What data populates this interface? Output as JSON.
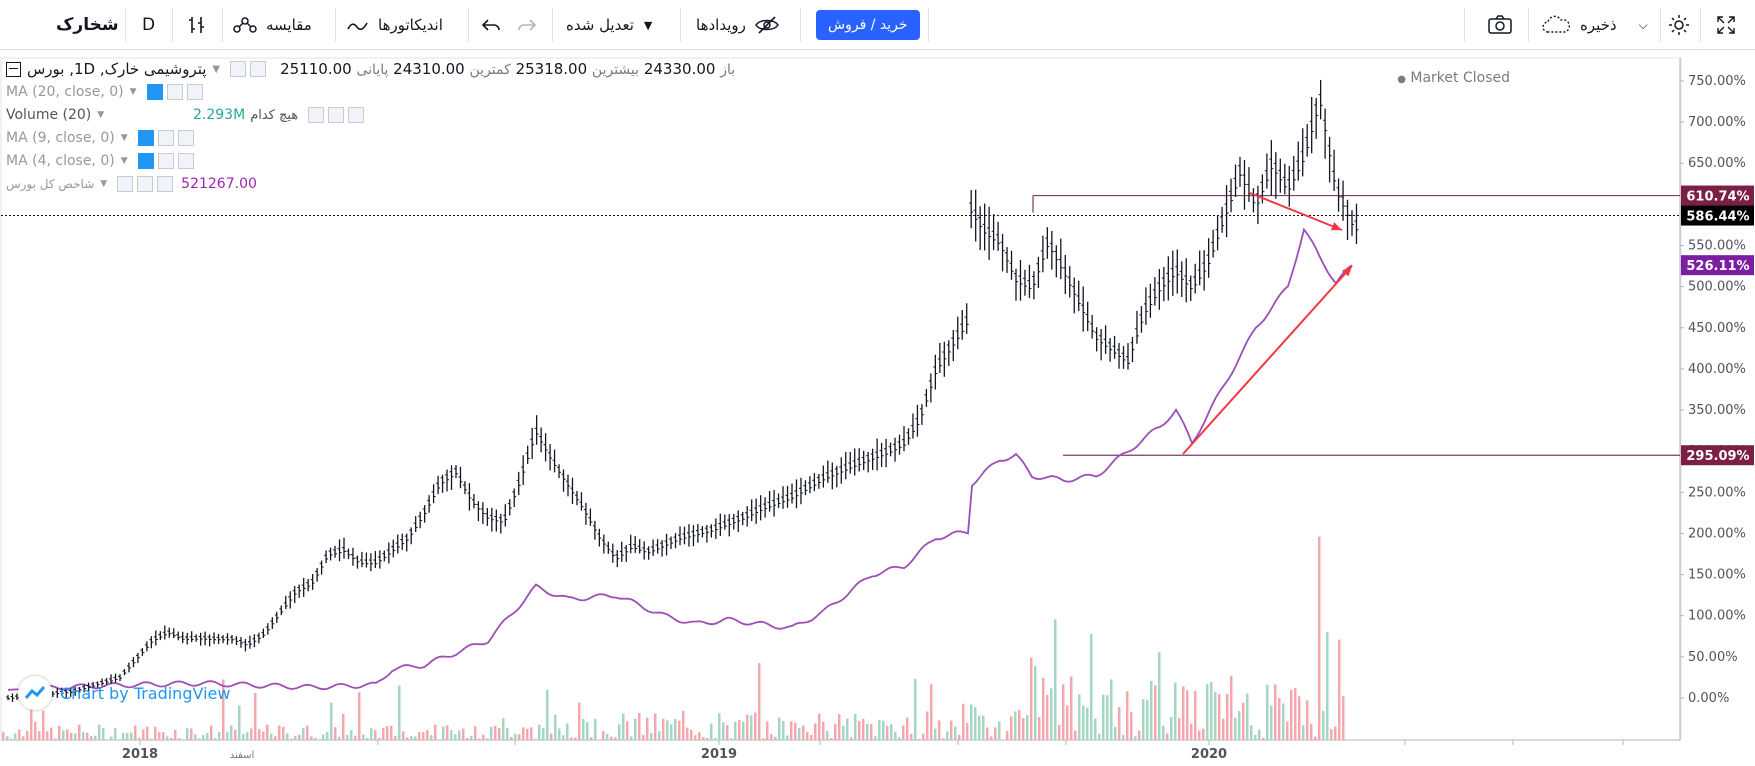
{
  "toolbar": {
    "symbol": "شخارک",
    "interval": "D",
    "compare": "مقایسه",
    "indicators": "اندیکاتورها",
    "adjusted": "تعدیل شده",
    "events": "رویدادها",
    "buy_sell": "خرید / فروش",
    "save": "ذخیره"
  },
  "legend": {
    "title": "پتروشیمی خارک, 1D, بورس",
    "open_label": "باز",
    "open": "24330.00",
    "high_label": "بیشترین",
    "high": "25318.00",
    "low_label": "کمترین",
    "low": "24310.00",
    "close_label": "پایانی",
    "close": "25110.00",
    "ma20": "MA (20, close, 0)",
    "volume": "Volume (20)",
    "volume_none": "هیچ کدام",
    "volume_value": "2.293M",
    "ma9": "MA (9, close, 0)",
    "ma4": "MA (4, close, 0)",
    "index_name": "شاخص کل بورس",
    "index_value": "521267.00"
  },
  "status": "Market Closed",
  "watermark": "Chart by TradingView",
  "colors": {
    "up_volume": "#a5d6c4",
    "down_volume": "#f4a8ad",
    "index_line": "#9c4fb5",
    "level_line": "#7b3c63",
    "arrow": "#f23645",
    "badge_610": "#7b1f45",
    "badge_526": "#7b1fa2",
    "badge_295": "#7b1f45",
    "badge_586": "#000000"
  },
  "chart_data": {
    "type": "line",
    "y_axis_unit": "%",
    "y_ticks": [
      "750.00%",
      "700.00%",
      "650.00%",
      "600.00%",
      "550.00%",
      "500.00%",
      "450.00%",
      "400.00%",
      "350.00%",
      "300.00%",
      "250.00%",
      "200.00%",
      "150.00%",
      "100.00%",
      "50.00%",
      "0.00%"
    ],
    "x_ticks": [
      "2018",
      "اسفند",
      "2019",
      "2020"
    ],
    "price_labels": [
      {
        "text": "610.74%",
        "value": 610.74,
        "color": "badge_610"
      },
      {
        "text": "586.44%",
        "value": 586.44,
        "color": "badge_586"
      },
      {
        "text": "526.11%",
        "value": 526.11,
        "color": "badge_526"
      },
      {
        "text": "295.09%",
        "value": 295.09,
        "color": "badge_295"
      }
    ],
    "series": [
      {
        "name": "پتروشیمی خارک",
        "type": "bar",
        "points": [
          [
            0,
            0
          ],
          [
            4,
            8
          ],
          [
            7,
            25
          ],
          [
            9,
            70
          ],
          [
            10,
            80
          ],
          [
            11,
            72
          ],
          [
            12,
            73
          ],
          [
            13,
            72
          ],
          [
            14,
            72
          ],
          [
            15,
            65
          ],
          [
            16,
            78
          ],
          [
            18,
            130
          ],
          [
            19,
            140
          ],
          [
            20,
            175
          ],
          [
            21,
            180
          ],
          [
            22,
            165
          ],
          [
            23,
            165
          ],
          [
            25,
            195
          ],
          [
            26,
            225
          ],
          [
            27,
            262
          ],
          [
            28,
            275
          ],
          [
            29,
            240
          ],
          [
            30,
            220
          ],
          [
            31,
            215
          ],
          [
            32,
            265
          ],
          [
            33,
            325
          ],
          [
            34,
            290
          ],
          [
            35,
            260
          ],
          [
            36,
            230
          ],
          [
            37,
            195
          ],
          [
            38,
            170
          ],
          [
            39,
            185
          ],
          [
            40,
            178
          ],
          [
            42,
            195
          ],
          [
            44,
            205
          ],
          [
            46,
            220
          ],
          [
            47,
            230
          ],
          [
            49,
            245
          ],
          [
            51,
            268
          ],
          [
            53,
            285
          ],
          [
            55,
            300
          ],
          [
            56,
            310
          ],
          [
            57,
            340
          ],
          [
            58,
            400
          ],
          [
            59,
            430
          ],
          [
            60,
            460
          ],
          [
            60.2,
            595
          ],
          [
            61,
            570
          ],
          [
            62,
            555
          ],
          [
            63,
            510
          ],
          [
            64,
            500
          ],
          [
            65,
            555
          ],
          [
            66,
            520
          ],
          [
            67,
            480
          ],
          [
            68,
            440
          ],
          [
            69,
            425
          ],
          [
            70,
            410
          ],
          [
            71,
            470
          ],
          [
            72,
            500
          ],
          [
            73,
            520
          ],
          [
            74,
            500
          ],
          [
            75,
            530
          ],
          [
            76,
            585
          ],
          [
            77,
            640
          ],
          [
            78,
            600
          ],
          [
            79,
            650
          ],
          [
            80,
            620
          ],
          [
            81,
            660
          ],
          [
            82,
            730
          ],
          [
            83,
            620
          ],
          [
            84,
            580
          ],
          [
            84.5,
            568
          ]
        ]
      },
      {
        "name": "شاخص کل بورس",
        "type": "line",
        "points": [
          [
            0,
            10
          ],
          [
            6,
            15
          ],
          [
            12,
            18
          ],
          [
            19,
            13
          ],
          [
            23,
            16
          ],
          [
            24,
            35
          ],
          [
            26,
            40
          ],
          [
            30,
            70
          ],
          [
            33,
            135
          ],
          [
            35,
            120
          ],
          [
            38,
            125
          ],
          [
            41,
            100
          ],
          [
            43,
            90
          ],
          [
            45,
            95
          ],
          [
            49,
            85
          ],
          [
            51,
            105
          ],
          [
            54,
            150
          ],
          [
            56,
            160
          ],
          [
            58,
            195
          ],
          [
            60,
            202
          ],
          [
            60.2,
            260
          ],
          [
            62,
            290
          ],
          [
            63,
            295
          ],
          [
            64,
            270
          ],
          [
            66,
            265
          ],
          [
            68,
            270
          ],
          [
            70,
            300
          ],
          [
            72,
            330
          ],
          [
            73,
            350
          ],
          [
            74,
            310
          ],
          [
            76,
            380
          ],
          [
            78,
            450
          ],
          [
            80,
            500
          ],
          [
            81,
            570
          ],
          [
            82,
            535
          ],
          [
            83,
            505
          ],
          [
            84,
            525
          ]
        ]
      }
    ]
  }
}
